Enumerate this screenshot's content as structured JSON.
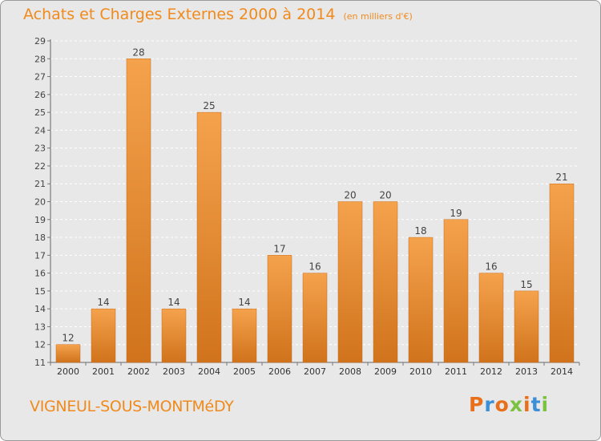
{
  "header": {
    "title": "Achats et Charges Externes 2000 à 2014",
    "subtitle": "(en milliers d'€)"
  },
  "footer": {
    "commune": "VIGNEUL-SOUS-MONTMéDY",
    "logo": "Proxiti"
  },
  "colors": {
    "background": "#e8e8e8",
    "bar_top": "#f5a24d",
    "bar_bottom": "#d0731c",
    "title": "#f08a1c",
    "grid": "#ffffff",
    "logo_letters": [
      "#e8701a",
      "#3a8fd8",
      "#e8701a",
      "#7cc242",
      "#e8701a",
      "#3a8fd8",
      "#7cc242"
    ]
  },
  "chart_data": {
    "type": "bar",
    "categories": [
      "2000",
      "2001",
      "2002",
      "2003",
      "2004",
      "2005",
      "2006",
      "2007",
      "2008",
      "2009",
      "2010",
      "2011",
      "2012",
      "2013",
      "2014"
    ],
    "values": [
      12,
      14,
      28,
      14,
      25,
      14,
      17,
      16,
      20,
      20,
      18,
      19,
      16,
      15,
      21
    ],
    "ylim": [
      11,
      29
    ],
    "yticks": [
      11,
      12,
      13,
      14,
      15,
      16,
      17,
      18,
      19,
      20,
      21,
      22,
      23,
      24,
      25,
      26,
      27,
      28,
      29
    ],
    "grid": true,
    "data_labels": true
  }
}
